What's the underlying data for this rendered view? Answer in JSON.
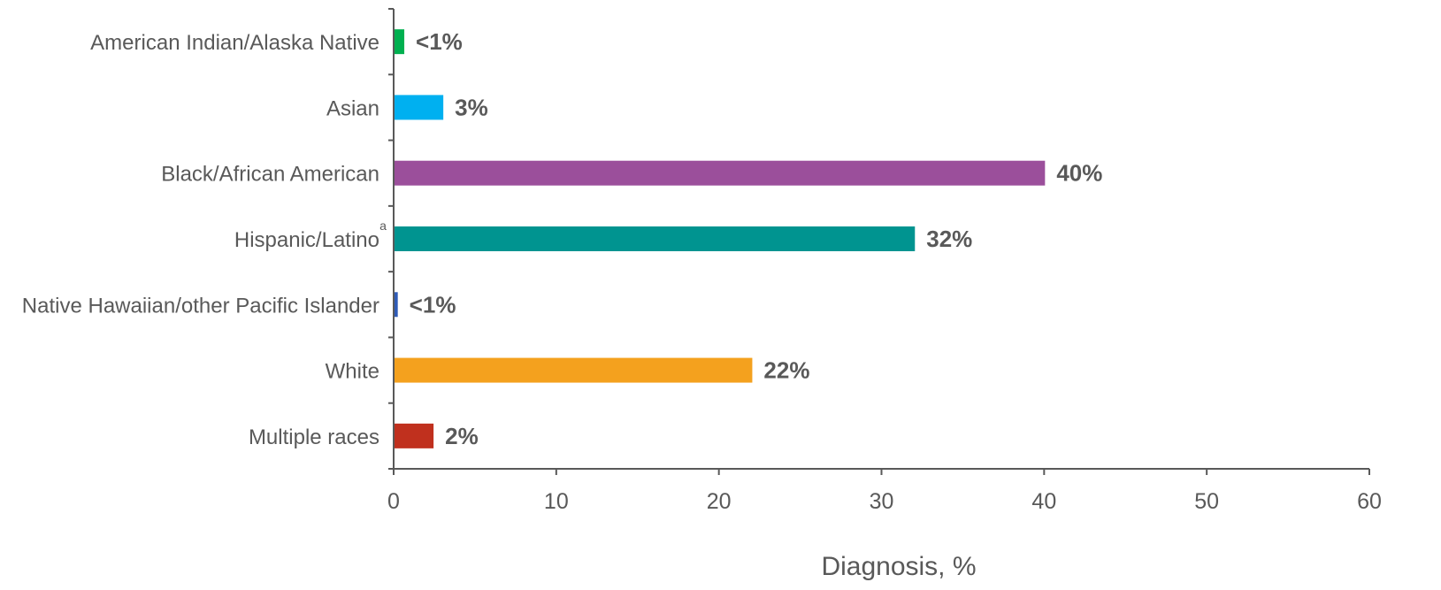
{
  "chart_data": {
    "type": "bar",
    "orientation": "horizontal",
    "categories": [
      "American Indian/Alaska Native",
      "Asian",
      "Black/African American",
      "Hispanic/Latino",
      "Native Hawaiian/other Pacific Islander",
      "White",
      "Multiple races"
    ],
    "category_superscripts": [
      "",
      "",
      "",
      "a",
      "",
      "",
      ""
    ],
    "values": [
      0.6,
      3,
      40,
      32,
      0.2,
      22,
      2.4
    ],
    "data_labels": [
      "<1%",
      "3%",
      "40%",
      "32%",
      "<1%",
      "22%",
      "2%"
    ],
    "colors": [
      "#00B050",
      "#00B0F0",
      "#9B4F9B",
      "#009490",
      "#2F5BB7",
      "#F4A11E",
      "#C0301E"
    ],
    "xlabel": "Diagnosis, %",
    "ylabel": "",
    "xlim": [
      0,
      60
    ],
    "x_ticks": [
      "0",
      "10",
      "20",
      "30",
      "40",
      "50",
      "60"
    ],
    "grid": false,
    "legend": "none"
  }
}
